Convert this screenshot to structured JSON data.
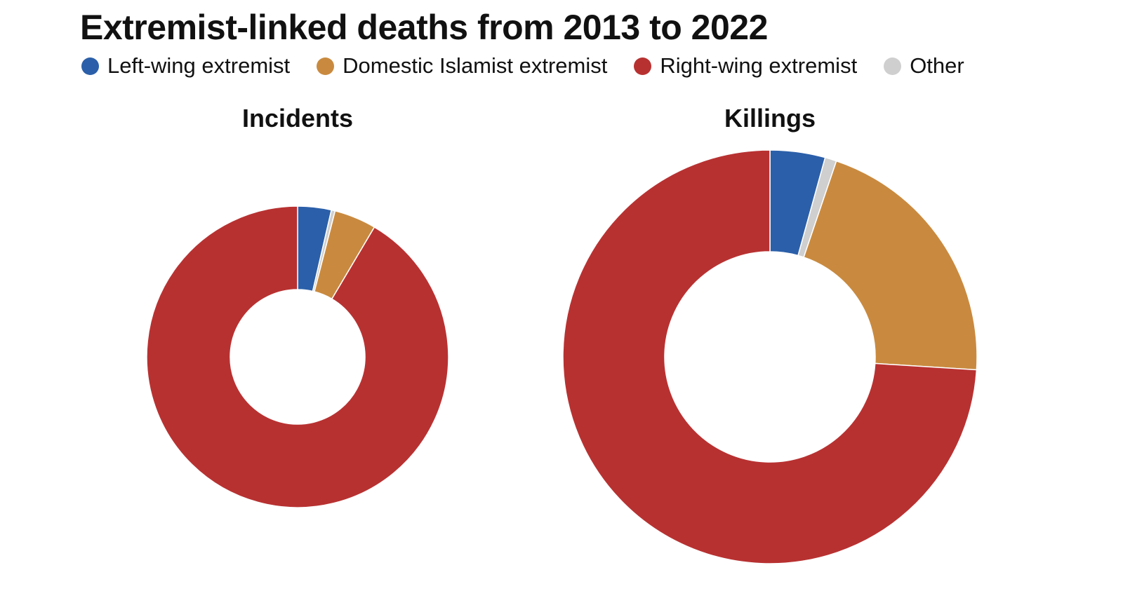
{
  "chart_data": {
    "type": "pie",
    "title": "Extremist-linked deaths from 2013 to 2022",
    "legend_placement": "top",
    "categories": [
      "Left-wing extremist",
      "Domestic Islamist extremist",
      "Right-wing extremist",
      "Other"
    ],
    "colors": [
      "#2b5fa9",
      "#c98a3f",
      "#b83131",
      "#cfcfcf"
    ],
    "charts": [
      {
        "title": "Incidents",
        "series": [
          {
            "name": "Left-wing extremist",
            "value": 3.6
          },
          {
            "name": "Other",
            "value": 0.4
          },
          {
            "name": "Domestic Islamist extremist",
            "value": 4.5
          },
          {
            "name": "Right-wing extremist",
            "value": 91.5
          }
        ]
      },
      {
        "title": "Killings",
        "series": [
          {
            "name": "Left-wing extremist",
            "value": 4.3
          },
          {
            "name": "Other",
            "value": 0.9
          },
          {
            "name": "Domestic Islamist extremist",
            "value": 20.8
          },
          {
            "name": "Right-wing extremist",
            "value": 74.0
          }
        ]
      }
    ]
  }
}
